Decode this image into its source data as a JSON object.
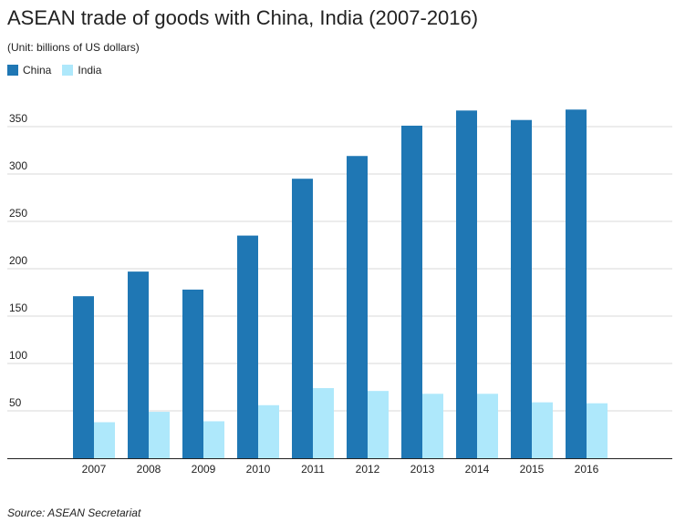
{
  "title": "ASEAN trade of goods with China, India (2007-2016)",
  "subtitle": "(Unit: billions of US dollars)",
  "source": "Source: ASEAN Secretariat",
  "colors": {
    "china": "#1f77b4",
    "india": "#aee8fb",
    "grid": "#d9d9d9",
    "axis": "#222222"
  },
  "chart_data": {
    "type": "bar",
    "categories": [
      "2007",
      "2008",
      "2009",
      "2010",
      "2011",
      "2012",
      "2013",
      "2014",
      "2015",
      "2016"
    ],
    "series": [
      {
        "name": "China",
        "values": [
          171,
          197,
          178,
          235,
          295,
          319,
          351,
          367,
          357,
          368
        ]
      },
      {
        "name": "India",
        "values": [
          38,
          49,
          39,
          56,
          74,
          71,
          68,
          68,
          59,
          58
        ]
      }
    ],
    "yticks": [
      50,
      100,
      150,
      200,
      250,
      300,
      350
    ],
    "ylim": [
      0,
      380
    ],
    "grid": true,
    "legend": "top-left"
  }
}
